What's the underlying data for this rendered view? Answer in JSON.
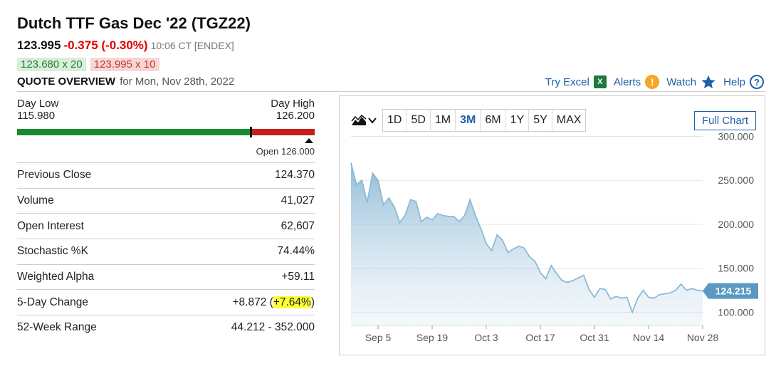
{
  "header": {
    "title": "Dutch TTF Gas Dec '22 (TGZ22)",
    "last": "123.995",
    "change": "-0.375 (-0.30%)",
    "time": "10:06 CT [ENDEX]",
    "bid": "123.680 x 20",
    "ask": "123.995 x 10",
    "overview_label": "QUOTE OVERVIEW",
    "overview_date": "for Mon, Nov 28th, 2022"
  },
  "links": {
    "excel": "Try Excel",
    "alerts": "Alerts",
    "watch": "Watch",
    "help": "Help"
  },
  "range": {
    "low_label": "Day Low",
    "low": "115.980",
    "high_label": "Day High",
    "high": "126.200",
    "open_label": "Open 126.000",
    "low_value": 115.98,
    "high_value": 126.2,
    "last_value": 123.995,
    "open_value": 126.0
  },
  "stats": [
    {
      "label": "Previous Close",
      "value": "124.370"
    },
    {
      "label": "Volume",
      "value": "41,027"
    },
    {
      "label": "Open Interest",
      "value": "62,607"
    },
    {
      "label": "Stochastic %K",
      "value": "74.44%"
    },
    {
      "label": "Weighted Alpha",
      "value": "+59.11"
    },
    {
      "label": "5-Day Change",
      "value_a": "+8.872 (",
      "value_b": "+7.64%",
      "value_c": ")"
    },
    {
      "label": "52-Week Range",
      "value": "44.212 - 352.000"
    }
  ],
  "chart": {
    "periods": [
      "1D",
      "5D",
      "1M",
      "3M",
      "6M",
      "1Y",
      "5Y",
      "MAX"
    ],
    "active_period": "3M",
    "full_chart": "Full Chart"
  },
  "chart_data": {
    "type": "area",
    "x": [
      "Aug 29",
      "Aug 30",
      "Aug 31",
      "Sep 1",
      "Sep 2",
      "Sep 5",
      "Sep 6",
      "Sep 7",
      "Sep 8",
      "Sep 9",
      "Sep 12",
      "Sep 13",
      "Sep 14",
      "Sep 15",
      "Sep 16",
      "Sep 19",
      "Sep 20",
      "Sep 21",
      "Sep 22",
      "Sep 23",
      "Sep 26",
      "Sep 27",
      "Sep 28",
      "Sep 29",
      "Sep 30",
      "Oct 3",
      "Oct 4",
      "Oct 5",
      "Oct 6",
      "Oct 7",
      "Oct 10",
      "Oct 11",
      "Oct 12",
      "Oct 13",
      "Oct 14",
      "Oct 17",
      "Oct 18",
      "Oct 19",
      "Oct 20",
      "Oct 21",
      "Oct 24",
      "Oct 25",
      "Oct 26",
      "Oct 27",
      "Oct 28",
      "Oct 31",
      "Nov 1",
      "Nov 2",
      "Nov 3",
      "Nov 4",
      "Nov 7",
      "Nov 8",
      "Nov 9",
      "Nov 10",
      "Nov 11",
      "Nov 14",
      "Nov 15",
      "Nov 16",
      "Nov 17",
      "Nov 18",
      "Nov 21",
      "Nov 22",
      "Nov 23",
      "Nov 24",
      "Nov 25",
      "Nov 28"
    ],
    "values": [
      270,
      245,
      250,
      225,
      258,
      250,
      222,
      230,
      220,
      202,
      210,
      228,
      226,
      203,
      208,
      205,
      212,
      210,
      209,
      209,
      203,
      210,
      228,
      210,
      195,
      178,
      170,
      188,
      182,
      168,
      172,
      175,
      173,
      163,
      158,
      145,
      138,
      153,
      144,
      136,
      134,
      136,
      139,
      142,
      126,
      117,
      127,
      126,
      115,
      118,
      116,
      117,
      100,
      116,
      125,
      117,
      116,
      120,
      121,
      122,
      125,
      132,
      125,
      127,
      125,
      124.215
    ],
    "x_ticks": [
      "Sep 5",
      "Sep 19",
      "Oct 3",
      "Oct 17",
      "Oct 31",
      "Nov 14",
      "Nov 28"
    ],
    "y_ticks": [
      100,
      150,
      200,
      250,
      300
    ],
    "y_tick_labels": [
      "100.000",
      "150.000",
      "200.000",
      "250.000",
      "300.000"
    ],
    "ylim": [
      85,
      302
    ],
    "last_label": "124.215",
    "color": "#8fb9d4"
  }
}
